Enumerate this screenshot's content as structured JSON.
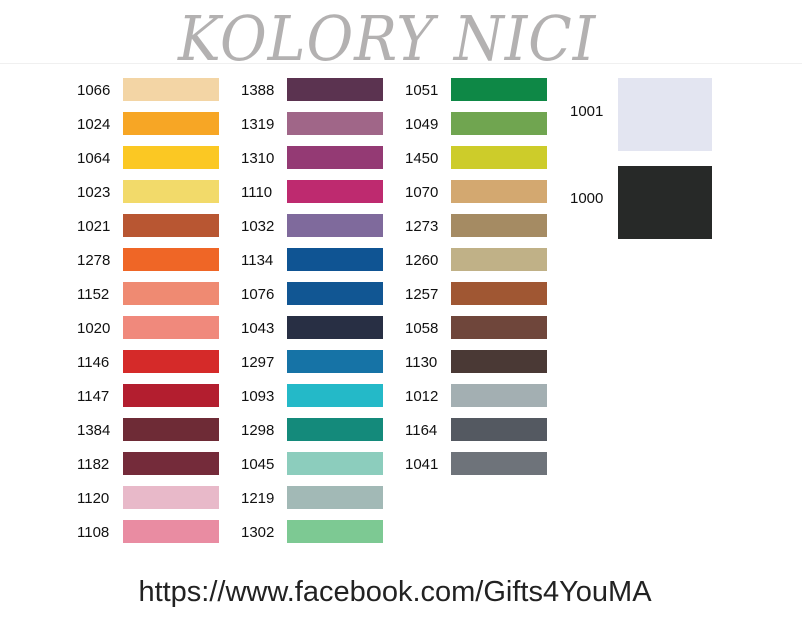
{
  "title": "KOLORY NICI",
  "columns": [
    [
      {
        "code": "1066",
        "color": "#f3d5a5"
      },
      {
        "code": "1024",
        "color": "#f7a625"
      },
      {
        "code": "1064",
        "color": "#fbc823"
      },
      {
        "code": "1023",
        "color": "#f2da6a"
      },
      {
        "code": "1021",
        "color": "#b85632"
      },
      {
        "code": "1278",
        "color": "#ef6626"
      },
      {
        "code": "1152",
        "color": "#ef8a72"
      },
      {
        "code": "1020",
        "color": "#f0897c"
      },
      {
        "code": "1146",
        "color": "#d52a29"
      },
      {
        "code": "1147",
        "color": "#b31e2f"
      },
      {
        "code": "1384",
        "color": "#6e2b36"
      },
      {
        "code": "1182",
        "color": "#742b3a"
      },
      {
        "code": "1120",
        "color": "#e8b9c9"
      },
      {
        "code": "1108",
        "color": "#e98ca2"
      }
    ],
    [
      {
        "code": "1388",
        "color": "#5b3350"
      },
      {
        "code": "1319",
        "color": "#a06688"
      },
      {
        "code": "1310",
        "color": "#943a74"
      },
      {
        "code": "1110",
        "color": "#be2a6f"
      },
      {
        "code": "1032",
        "color": "#7f6a9c"
      },
      {
        "code": "1134",
        "color": "#0f5493"
      },
      {
        "code": "1076",
        "color": "#115693"
      },
      {
        "code": "1043",
        "color": "#282f44"
      },
      {
        "code": "1297",
        "color": "#1673a6"
      },
      {
        "code": "1093",
        "color": "#24b9c8"
      },
      {
        "code": "1298",
        "color": "#148a7b"
      },
      {
        "code": "1045",
        "color": "#8ccdbd"
      },
      {
        "code": "1219",
        "color": "#a2b9b6"
      },
      {
        "code": "1302",
        "color": "#7dc993"
      }
    ],
    [
      {
        "code": "1051",
        "color": "#0e8846"
      },
      {
        "code": "1049",
        "color": "#70a550"
      },
      {
        "code": "1450",
        "color": "#cdcc2a"
      },
      {
        "code": "1070",
        "color": "#d3a870"
      },
      {
        "code": "1273",
        "color": "#a58b63"
      },
      {
        "code": "1260",
        "color": "#c0b187"
      },
      {
        "code": "1257",
        "color": "#a05733"
      },
      {
        "code": "1058",
        "color": "#6f463b"
      },
      {
        "code": "1130",
        "color": "#4a3935"
      },
      {
        "code": "1012",
        "color": "#a3afb2"
      },
      {
        "code": "1164",
        "color": "#545961"
      },
      {
        "code": "1041",
        "color": "#6e737a"
      }
    ]
  ],
  "large": [
    {
      "code": "1001",
      "color": "#e3e5f1"
    },
    {
      "code": "1000",
      "color": "#272928"
    }
  ],
  "footer_url": "https://www.facebook.com/Gifts4YouMA"
}
